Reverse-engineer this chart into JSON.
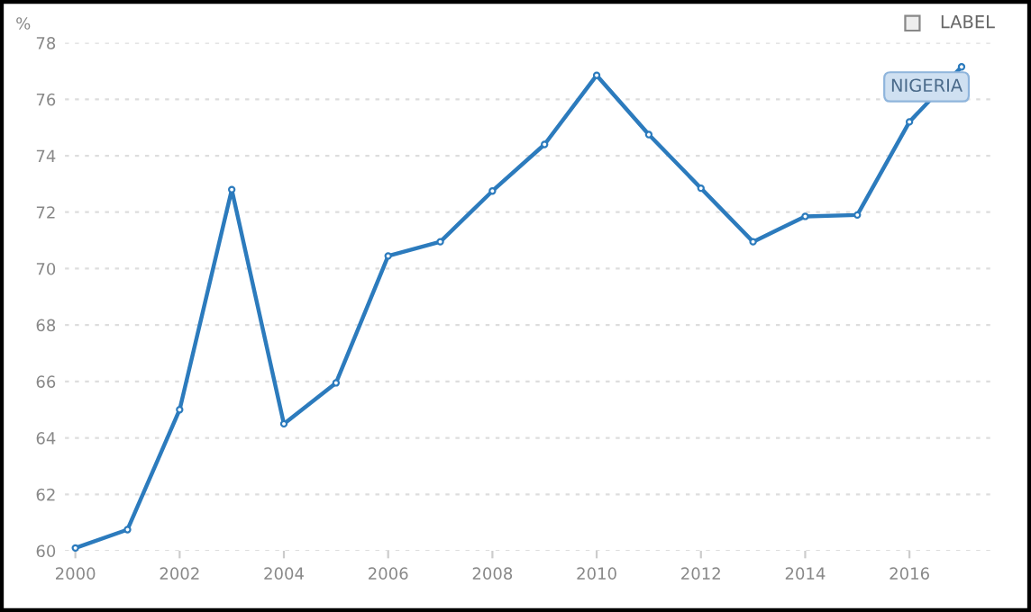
{
  "chart_data": {
    "type": "line",
    "ylabel": "%",
    "x": [
      2000,
      2001,
      2002,
      2003,
      2004,
      2005,
      2006,
      2007,
      2008,
      2009,
      2010,
      2011,
      2012,
      2013,
      2014,
      2015,
      2016,
      2017
    ],
    "series": [
      {
        "name": "NIGERIA",
        "color": "#2c7bbd",
        "values": [
          60.1,
          60.75,
          65.0,
          72.8,
          64.5,
          65.95,
          70.45,
          70.95,
          72.75,
          74.4,
          76.85,
          74.75,
          72.85,
          70.95,
          71.85,
          71.9,
          75.2,
          77.15
        ]
      }
    ],
    "xlim": [
      1999.8,
      2017.6
    ],
    "xticks": [
      2000,
      2002,
      2004,
      2006,
      2008,
      2010,
      2012,
      2014,
      2016
    ],
    "ylim": [
      60,
      78
    ],
    "yticks": [
      60,
      62,
      64,
      66,
      68,
      70,
      72,
      74,
      76,
      78
    ],
    "grid": "y",
    "marker": "circle",
    "line_style": "solid",
    "legend": false,
    "annotations": [
      "LABEL"
    ]
  }
}
